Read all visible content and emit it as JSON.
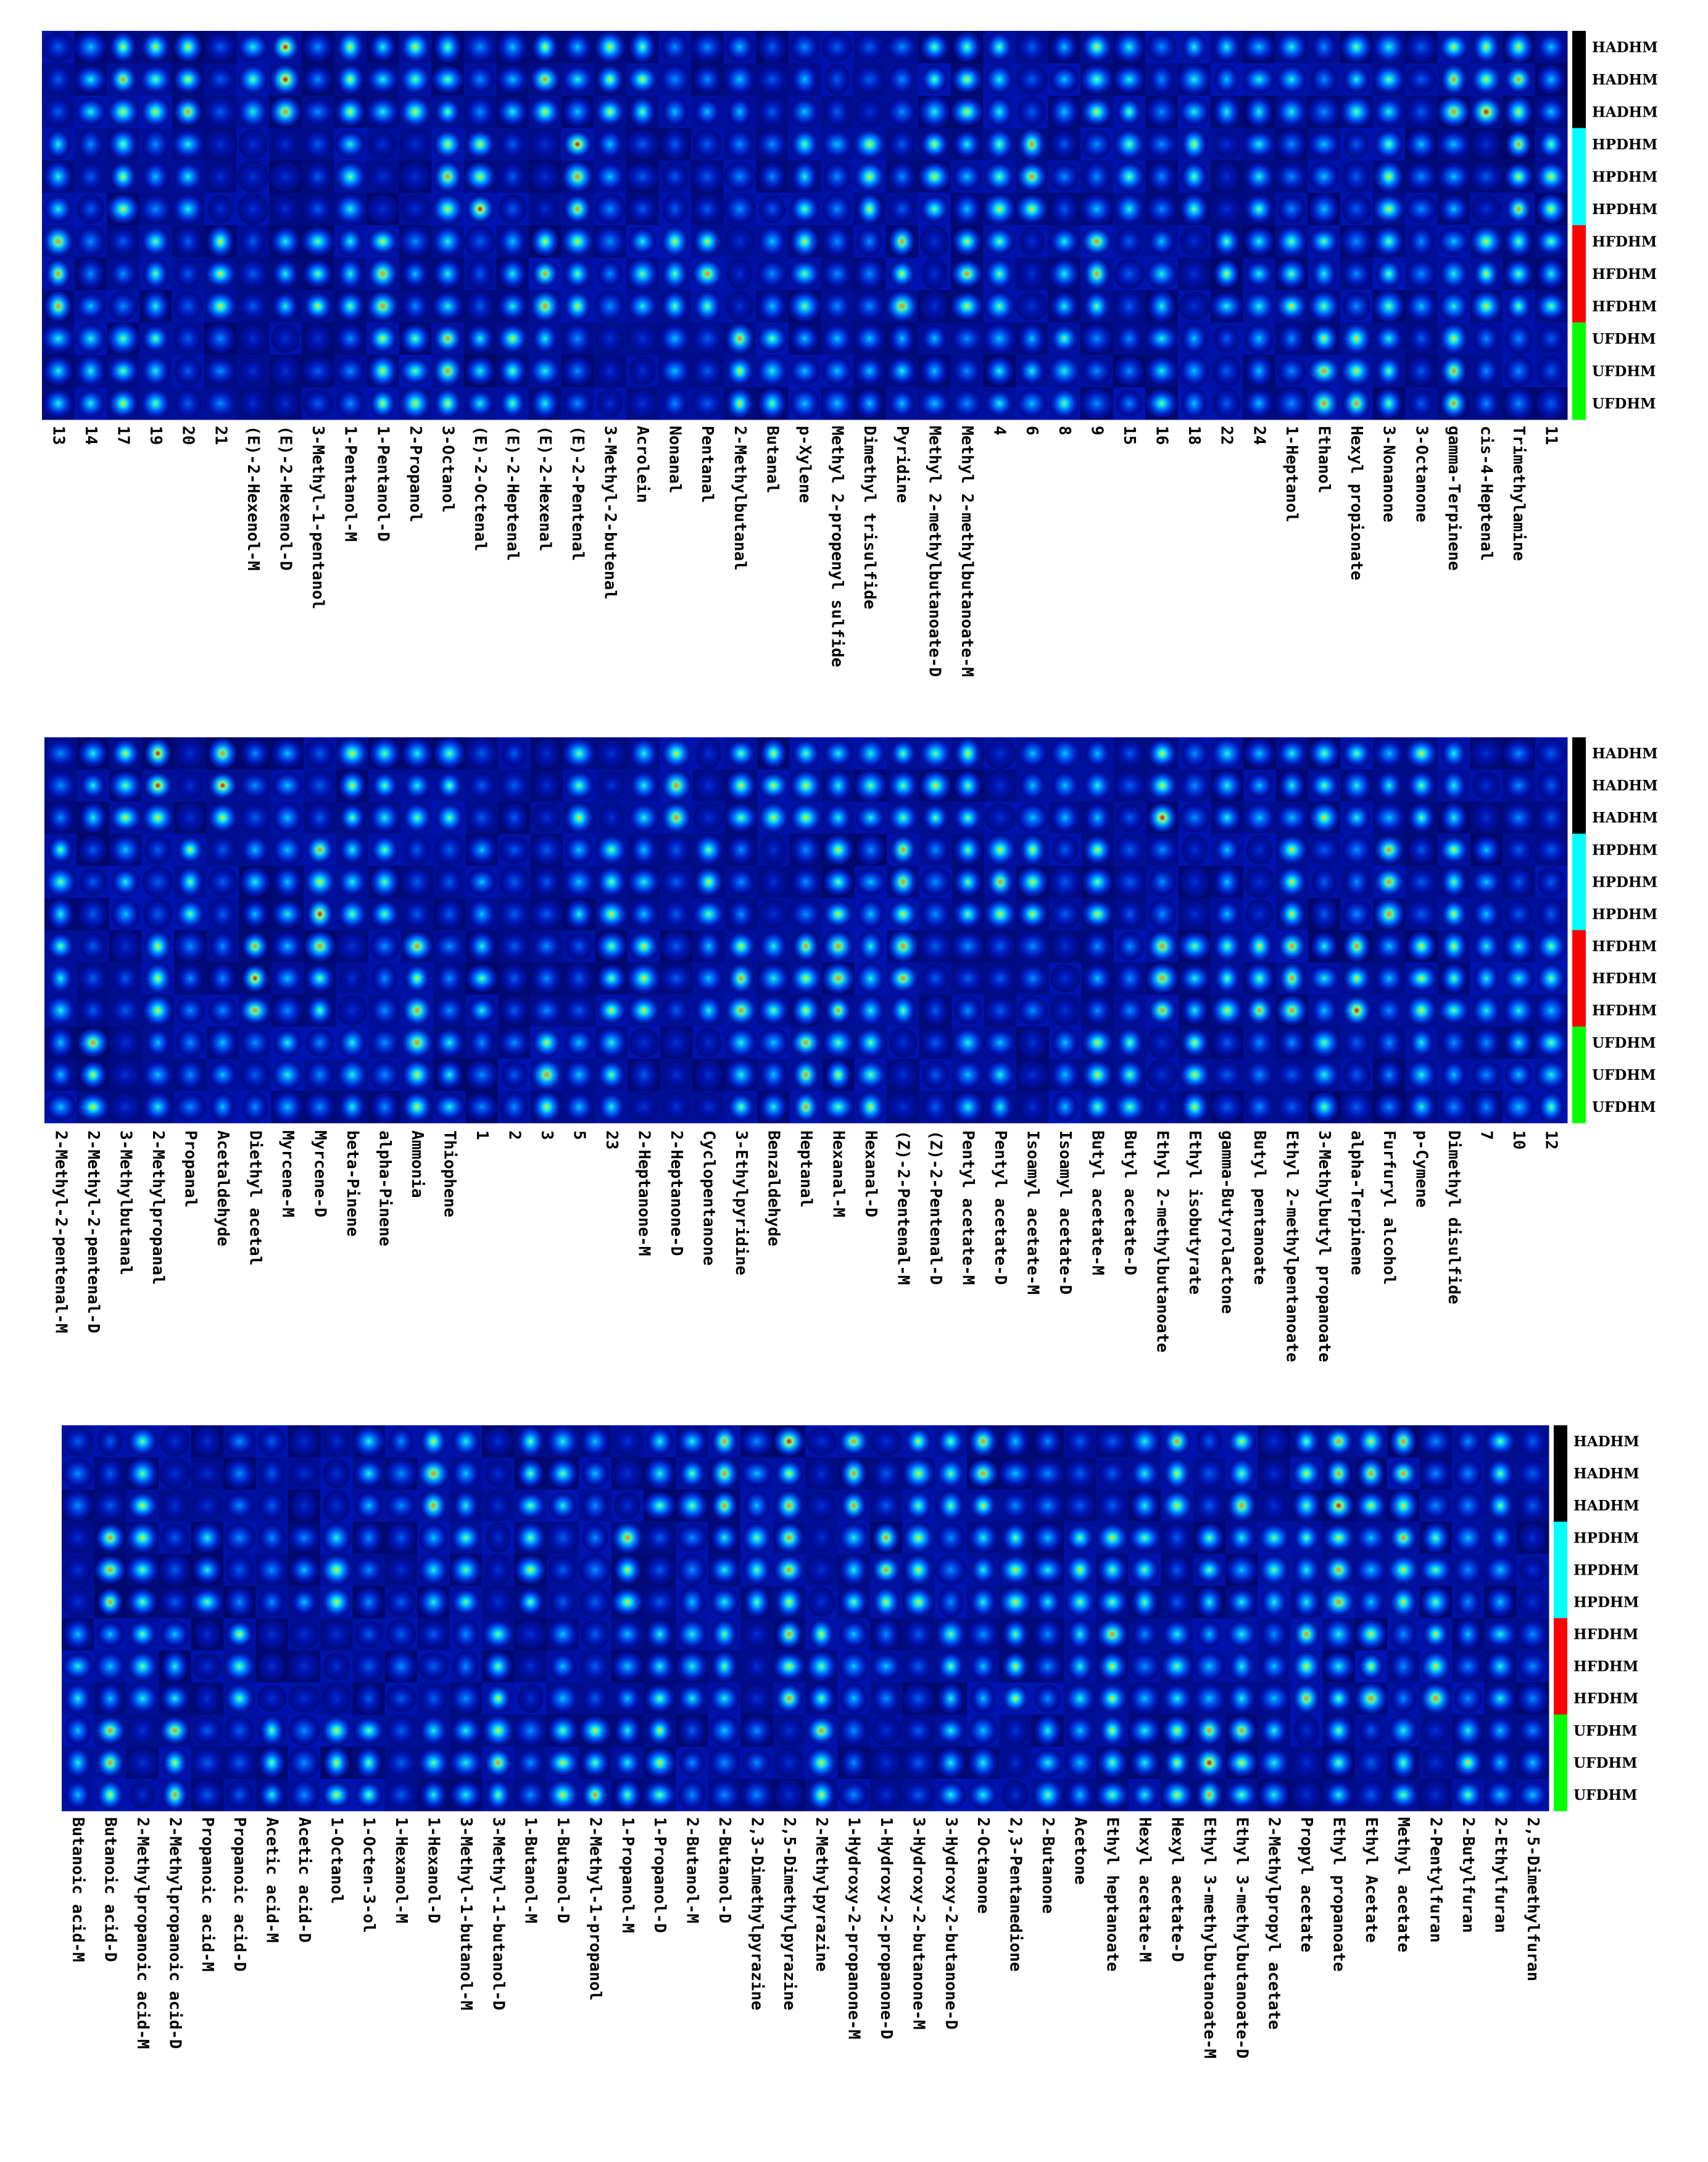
{
  "chart_data": [
    {
      "type": "heatmap",
      "panel": 1,
      "rows": [
        "HADHM",
        "HADHM",
        "HADHM",
        "HPDHM",
        "HPDHM",
        "HPDHM",
        "HFDHM",
        "HFDHM",
        "HFDHM",
        "UFDHM",
        "UFDHM",
        "UFDHM"
      ],
      "columns": [
        "13",
        "14",
        "17",
        "19",
        "20",
        "21",
        "(E)-2-Hexenol-M",
        "(E)-2-Hexenol-D",
        "3-Methyl-1-pentanol",
        "1-Pentanol-M",
        "1-Pentanol-D",
        "2-Propanol",
        "3-Octanol",
        "(E)-2-Octenal",
        "(E)-2-Heptenal",
        "(E)-2-Hexenal",
        "(E)-2-Pentenal",
        "3-Methyl-2-butenal",
        "Acrolein",
        "Nonanal",
        "Pentanal",
        "2-Methylbutanal",
        "Butanal",
        "p-Xylene",
        "Methyl 2-propenyl sulfide",
        "Dimethyl trisulfide",
        "Pyridine",
        "Methyl 2-methylbutanoate-D",
        "Methyl 2-methylbutanoate-M",
        "4",
        "6",
        "8",
        "9",
        "15",
        "16",
        "18",
        "22",
        "24",
        "1-Heptanol",
        "Ethanol",
        "Hexyl propionate",
        "3-Nonanone",
        "3-Octanone",
        "gamma-Terpinene",
        "cis-4-Heptenal",
        "Trimethylamine",
        "11"
      ],
      "group_colors": {
        "HADHM": "#000000",
        "HPDHM": "#00ffff",
        "HFDHM": "#ff0000",
        "UFDHM": "#00ff00"
      }
    },
    {
      "type": "heatmap",
      "panel": 2,
      "rows": [
        "HADHM",
        "HADHM",
        "HADHM",
        "HPDHM",
        "HPDHM",
        "HPDHM",
        "HFDHM",
        "HFDHM",
        "HFDHM",
        "UFDHM",
        "UFDHM",
        "UFDHM"
      ],
      "columns": [
        "2-Methyl-2-pentenal-M",
        "2-Methyl-2-pentenal-D",
        "3-Methylbutanal",
        "2-Methylpropanal",
        "Propanal",
        "Acetaldehyde",
        "Diethyl acetal",
        "Myrcene-M",
        "Myrcene-D",
        "beta-Pinene",
        "alpha-Pinene",
        "Ammonia",
        "Thiophene",
        "1",
        "2",
        "3",
        "5",
        "23",
        "2-Heptanone-M",
        "2-Heptanone-D",
        "Cyclopentanone",
        "3-Ethylpyridine",
        "Benzaldehyde",
        "Heptanal",
        "Hexanal-M",
        "Hexanal-D",
        "(Z)-2-Pentenal-M",
        "(Z)-2-Pentenal-D",
        "Pentyl acetate-M",
        "Pentyl acetate-D",
        "Isoamyl acetate-M",
        "Isoamyl acetate-D",
        "Butyl acetate-M",
        "Butyl acetate-D",
        "Ethyl 2-methylbutanoate",
        "Ethyl isobutyrate",
        "gamma-Butyrolactone",
        "Butyl pentanoate",
        "Ethyl 2-methylpentanoate",
        "3-Methylbutyl propanoate",
        "alpha-Terpinene",
        "Furfuryl alcohol",
        "p-Cymene",
        "Dimethyl disulfide",
        "7",
        "10",
        "12"
      ],
      "group_colors": {
        "HADHM": "#000000",
        "HPDHM": "#00ffff",
        "HFDHM": "#ff0000",
        "UFDHM": "#00ff00"
      }
    },
    {
      "type": "heatmap",
      "panel": 3,
      "rows": [
        "HADHM",
        "HADHM",
        "HADHM",
        "HPDHM",
        "HPDHM",
        "HPDHM",
        "HFDHM",
        "HFDHM",
        "HFDHM",
        "UFDHM",
        "UFDHM",
        "UFDHM"
      ],
      "columns": [
        "Butanoic acid-M",
        "Butanoic acid-D",
        "2-Methylpropanoic acid-M",
        "2-Methylpropanoic acid-D",
        "Propanoic acid-M",
        "Propanoic acid-D",
        "Acetic acid-M",
        "Acetic acid-D",
        "1-Octanol",
        "1-Octen-3-ol",
        "1-Hexanol-M",
        "1-Hexanol-D",
        "3-Methyl-1-butanol-M",
        "3-Methyl-1-butanol-D",
        "1-Butanol-M",
        "1-Butanol-D",
        "2-Methyl-1-propanol",
        "1-Propanol-M",
        "1-Propanol-D",
        "2-Butanol-M",
        "2-Butanol-D",
        "2,3-Dimethylpyrazine",
        "2,5-Dimethylpyrazine",
        "2-Methylpyrazine",
        "1-Hydroxy-2-propanone-M",
        "1-Hydroxy-2-propanone-D",
        "3-Hydroxy-2-butanone-M",
        "3-Hydroxy-2-butanone-D",
        "2-Octanone",
        "2,3-Pentanedione",
        "2-Butanone",
        "Acetone",
        "Ethyl heptanoate",
        "Hexyl acetate-M",
        "Hexyl acetate-D",
        "Ethyl 3-methylbutanoate-M",
        "Ethyl 3-methylbutanoate-D",
        "2-Methylpropyl acetate",
        "Propyl acetate",
        "Ethyl propanoate",
        "Ethyl Acetate",
        "Methyl acetate",
        "2-Pentylfuran",
        "2-Butylfuran",
        "2-Ethylfuran",
        "2,5-Dimethylfuran"
      ],
      "group_colors": {
        "HADHM": "#000000",
        "HPDHM": "#00ffff",
        "HFDHM": "#ff0000",
        "UFDHM": "#00ff00"
      }
    }
  ]
}
